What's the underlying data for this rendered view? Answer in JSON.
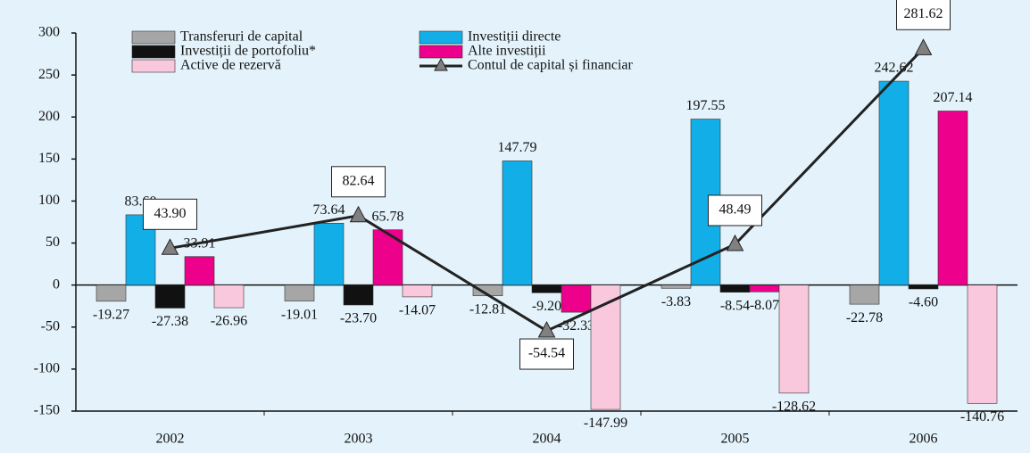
{
  "chart_data": {
    "type": "bar",
    "categories": [
      "2002",
      "2003",
      "2004",
      "2005",
      "2006"
    ],
    "ylim": [
      -150,
      300
    ],
    "yticks": [
      -150,
      -100,
      -50,
      0,
      50,
      100,
      150,
      200,
      250,
      300
    ],
    "series": [
      {
        "name": "Transferuri de capital",
        "color": "#a6a6a6",
        "values": [
          -19.27,
          -19.01,
          -12.81,
          -3.83,
          -22.78
        ],
        "value_labels": [
          "-19.27",
          "-19.01",
          "-12.81",
          "-3.83",
          "-22.78"
        ]
      },
      {
        "name": "Investiții directe",
        "color": "#12aee8",
        "values": [
          83.6,
          73.64,
          147.79,
          197.55,
          242.62
        ],
        "value_labels": [
          "83.60",
          "73.64",
          "147.79",
          "197.55",
          "242.62"
        ]
      },
      {
        "name": "Investiții de portofoliu*",
        "color": "#111111",
        "values": [
          -27.38,
          -23.7,
          -9.2,
          -8.54,
          -4.6
        ],
        "value_labels": [
          "-27.38",
          "-23.70",
          "-9.20",
          "-8.54",
          "-4.60"
        ]
      },
      {
        "name": "Alte investiții",
        "color": "#ec008c",
        "values": [
          33.91,
          65.78,
          -32.33,
          -8.07,
          207.14
        ],
        "value_labels": [
          "33.91",
          "65.78",
          "-32.33",
          "-8.07",
          "207.14"
        ]
      },
      {
        "name": "Active de rezervă",
        "color": "#f9c8dc",
        "values": [
          -26.96,
          -14.07,
          -147.99,
          -128.62,
          -140.76
        ],
        "value_labels": [
          "-26.96",
          "-14.07",
          "-147.99",
          "-128.62",
          "-140.76"
        ]
      },
      {
        "name": "Contul de capital și financiar",
        "type": "line",
        "color": "#808080",
        "values": [
          43.9,
          82.64,
          -54.54,
          48.49,
          281.62
        ],
        "value_labels": [
          "43.90",
          "82.64",
          "-54.54",
          "48.49",
          "281.62"
        ]
      }
    ]
  }
}
